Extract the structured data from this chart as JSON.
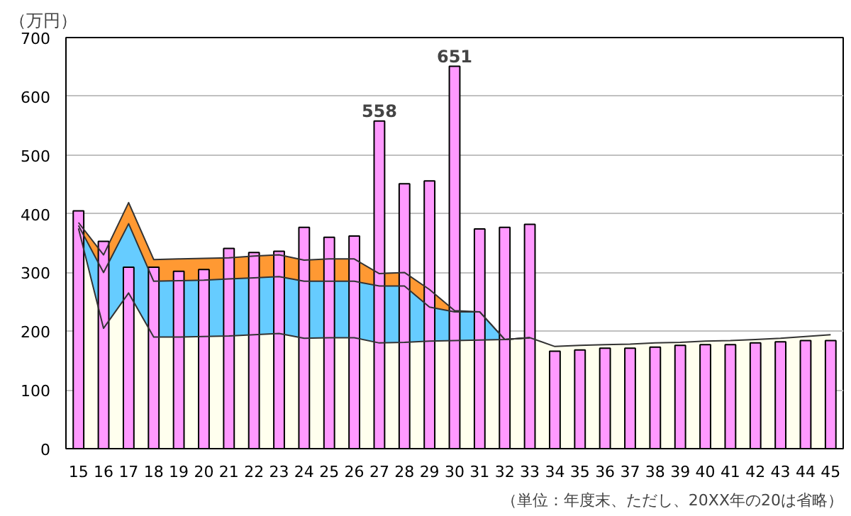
{
  "chart_data": {
    "type": "area",
    "ylabel": "（万円）",
    "categories": [
      "15",
      "16",
      "17",
      "18",
      "19",
      "20",
      "21",
      "22",
      "23",
      "24",
      "25",
      "26",
      "27",
      "28",
      "29",
      "30",
      "31",
      "32",
      "33",
      "34",
      "35",
      "36",
      "37",
      "38",
      "39",
      "40",
      "41",
      "42",
      "43",
      "44",
      "45"
    ],
    "series": [
      {
        "color": "#ff9933",
        "values": [
          385,
          330,
          419,
          322,
          323,
          324,
          325,
          328,
          330,
          321,
          323,
          323,
          298,
          300,
          271,
          235,
          233,
          186,
          189,
          null,
          null,
          null,
          null,
          null,
          null,
          null,
          null,
          null,
          null,
          null,
          null
        ]
      },
      {
        "color": "#66ccff",
        "values": [
          380,
          300,
          383,
          285,
          286,
          287,
          289,
          291,
          293,
          285,
          285,
          285,
          277,
          277,
          241,
          233,
          233,
          186,
          189,
          null,
          null,
          null,
          null,
          null,
          null,
          null,
          null,
          null,
          null,
          null,
          null
        ]
      },
      {
        "color": "#ffffee",
        "values": [
          375,
          205,
          265,
          190,
          190,
          191,
          192,
          194,
          196,
          188,
          189,
          189,
          180,
          181,
          183,
          184,
          185,
          186,
          189,
          174,
          176,
          177,
          178,
          180,
          181,
          183,
          184,
          186,
          188,
          191,
          194
        ]
      },
      {
        "type": "bar",
        "color": "#ff99ff",
        "values": [
          405,
          353,
          309,
          309,
          302,
          305,
          341,
          334,
          336,
          377,
          360,
          362,
          558,
          451,
          456,
          651,
          374,
          377,
          382,
          166,
          168,
          171,
          171,
          173,
          176,
          177,
          177,
          180,
          182,
          184,
          184
        ],
        "value_labels": [
          null,
          null,
          null,
          null,
          null,
          null,
          null,
          null,
          null,
          null,
          null,
          null,
          "558",
          null,
          null,
          "651",
          null,
          null,
          null,
          null,
          null,
          null,
          null,
          null,
          null,
          null,
          null,
          null,
          null,
          null,
          null
        ]
      }
    ],
    "ylim": [
      0,
      700
    ],
    "yticks": [
      0,
      100,
      200,
      300,
      400,
      500,
      600,
      700
    ],
    "grid": "y",
    "annotations": [
      "（単位：年度末、ただし、20XX年の20は省略）"
    ]
  }
}
